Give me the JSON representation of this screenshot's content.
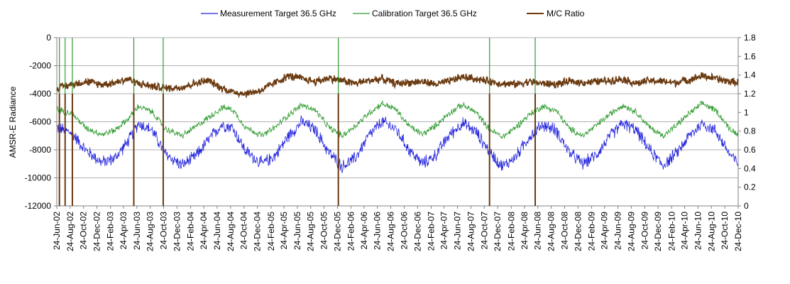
{
  "chart_data": {
    "type": "line",
    "title": "",
    "ylabel": "AMSR-E Radiance",
    "ylabel_right": "",
    "ylim": [
      -12000,
      0
    ],
    "ylim_right": [
      0,
      1.8
    ],
    "y_ticks": [
      "0",
      "-2000",
      "-4000",
      "-6000",
      "-8000",
      "-10000",
      "-12000"
    ],
    "y_ticks_right": [
      "1.8",
      "1.6",
      "1.4",
      "1.2",
      "1",
      "0.8",
      "0.6",
      "0.4",
      "0.2",
      "0"
    ],
    "grid": "horizontal",
    "legend_position": "top",
    "x_range": [
      "2002-06-24",
      "2010-12-24"
    ],
    "x_ticks": [
      "24-Jun-02",
      "24-Aug-02",
      "24-Oct-02",
      "24-Dec-02",
      "24-Feb-03",
      "24-Apr-03",
      "24-Jun-03",
      "24-Aug-03",
      "24-Oct-03",
      "24-Dec-03",
      "24-Feb-04",
      "24-Apr-04",
      "24-Jun-04",
      "24-Aug-04",
      "24-Oct-04",
      "24-Dec-04",
      "24-Feb-05",
      "24-Apr-05",
      "24-Jun-05",
      "24-Aug-05",
      "24-Oct-05",
      "24-Dec-05",
      "24-Feb-06",
      "24-Apr-06",
      "24-Jun-06",
      "24-Aug-06",
      "24-Oct-06",
      "24-Dec-06",
      "24-Feb-07",
      "24-Apr-07",
      "24-Jun-07",
      "24-Aug-07",
      "24-Oct-07",
      "24-Dec-07",
      "24-Feb-08",
      "24-Apr-08",
      "24-Jun-08",
      "24-Aug-08",
      "24-Oct-08",
      "24-Dec-08",
      "24-Feb-09",
      "24-Apr-09",
      "24-Jun-09",
      "24-Aug-09",
      "24-Oct-09",
      "24-Dec-09",
      "24-Feb-10",
      "24-Apr-10",
      "24-Jun-10",
      "24-Aug-10",
      "24-Oct-10",
      "24-Dec-10"
    ],
    "series": [
      {
        "name": "Measurement Target 36.5 GHz",
        "axis": "left",
        "color": "#2222dd",
        "x": [
          "2002-06-24",
          "2002-09-01",
          "2002-11-01",
          "2003-01-15",
          "2003-03-15",
          "2003-05-15",
          "2003-07-01",
          "2003-09-01",
          "2003-11-01",
          "2004-01-15",
          "2004-03-15",
          "2004-05-15",
          "2004-07-15",
          "2004-09-01",
          "2004-11-01",
          "2005-01-15",
          "2005-03-15",
          "2005-05-15",
          "2005-07-15",
          "2005-09-15",
          "2005-11-15",
          "2006-01-15",
          "2006-03-15",
          "2006-05-15",
          "2006-07-15",
          "2006-09-15",
          "2006-11-15",
          "2007-01-15",
          "2007-03-15",
          "2007-05-15",
          "2007-07-15",
          "2007-09-15",
          "2007-11-15",
          "2008-01-15",
          "2008-03-15",
          "2008-05-15",
          "2008-07-15",
          "2008-09-15",
          "2008-11-15",
          "2009-01-15",
          "2009-03-15",
          "2009-05-15",
          "2009-07-15",
          "2009-09-15",
          "2009-11-15",
          "2010-01-15",
          "2010-03-15",
          "2010-05-15",
          "2010-07-15",
          "2010-09-15",
          "2010-11-15",
          "2010-12-24"
        ],
        "values": [
          -6400,
          -6800,
          -8000,
          -8900,
          -8600,
          -7400,
          -6100,
          -6600,
          -8300,
          -9100,
          -8500,
          -7300,
          -6200,
          -6400,
          -8100,
          -9000,
          -8400,
          -7000,
          -6000,
          -6600,
          -8200,
          -9200,
          -8600,
          -7000,
          -6000,
          -6500,
          -8000,
          -9000,
          -8400,
          -7000,
          -6100,
          -6700,
          -8100,
          -9200,
          -8500,
          -7100,
          -6200,
          -6600,
          -8200,
          -9000,
          -8400,
          -7100,
          -6100,
          -6600,
          -8000,
          -9100,
          -8300,
          -7000,
          -6100,
          -6700,
          -8300,
          -9000
        ]
      },
      {
        "name": "Calibration Target 36.5 GHz",
        "axis": "left",
        "color": "#2e9b2e",
        "x": [
          "2002-06-24",
          "2002-09-01",
          "2002-11-01",
          "2003-01-15",
          "2003-03-15",
          "2003-05-15",
          "2003-07-01",
          "2003-09-01",
          "2003-11-01",
          "2004-01-15",
          "2004-03-15",
          "2004-05-15",
          "2004-07-15",
          "2004-09-01",
          "2004-11-01",
          "2005-01-15",
          "2005-03-15",
          "2005-05-15",
          "2005-07-15",
          "2005-09-15",
          "2005-11-15",
          "2006-01-15",
          "2006-03-15",
          "2006-05-15",
          "2006-07-15",
          "2006-09-15",
          "2006-11-15",
          "2007-01-15",
          "2007-03-15",
          "2007-05-15",
          "2007-07-15",
          "2007-09-15",
          "2007-11-15",
          "2008-01-15",
          "2008-03-15",
          "2008-05-15",
          "2008-07-15",
          "2008-09-15",
          "2008-11-15",
          "2009-01-15",
          "2009-03-15",
          "2009-05-15",
          "2009-07-15",
          "2009-09-15",
          "2009-11-15",
          "2010-01-15",
          "2010-03-15",
          "2010-05-15",
          "2010-07-15",
          "2010-09-15",
          "2010-11-15",
          "2010-12-24"
        ],
        "values": [
          -5100,
          -5400,
          -6400,
          -6900,
          -6600,
          -5800,
          -4900,
          -5300,
          -6500,
          -7000,
          -6400,
          -5700,
          -5000,
          -5100,
          -6400,
          -7000,
          -6400,
          -5500,
          -4800,
          -5200,
          -6400,
          -7000,
          -6300,
          -5400,
          -4700,
          -5100,
          -6300,
          -6900,
          -6300,
          -5400,
          -4800,
          -5300,
          -6500,
          -7100,
          -6400,
          -5500,
          -4900,
          -5200,
          -6500,
          -7000,
          -6300,
          -5500,
          -4800,
          -5300,
          -6400,
          -7000,
          -6300,
          -5400,
          -4700,
          -5200,
          -6500,
          -6900
        ]
      },
      {
        "name": "M/C Ratio",
        "axis": "right",
        "color": "#6b3a10",
        "x": [
          "2002-06-24",
          "2002-09-01",
          "2002-11-01",
          "2003-01-15",
          "2003-03-15",
          "2003-05-15",
          "2003-07-01",
          "2003-09-01",
          "2003-11-01",
          "2004-01-15",
          "2004-03-15",
          "2004-05-15",
          "2004-07-15",
          "2004-09-01",
          "2004-11-01",
          "2005-01-15",
          "2005-03-15",
          "2005-05-15",
          "2005-07-15",
          "2005-09-15",
          "2005-11-15",
          "2006-01-15",
          "2006-03-15",
          "2006-05-15",
          "2006-07-15",
          "2006-09-15",
          "2006-11-15",
          "2007-01-15",
          "2007-03-15",
          "2007-05-15",
          "2007-07-15",
          "2007-09-15",
          "2007-11-15",
          "2008-01-15",
          "2008-03-15",
          "2008-05-15",
          "2008-07-15",
          "2008-09-15",
          "2008-11-15",
          "2009-01-15",
          "2009-03-15",
          "2009-05-15",
          "2009-07-15",
          "2009-09-15",
          "2009-11-15",
          "2010-01-15",
          "2010-03-15",
          "2010-05-15",
          "2010-07-15",
          "2010-09-15",
          "2010-11-15",
          "2010-12-24"
        ],
        "values": [
          1.26,
          1.3,
          1.33,
          1.3,
          1.32,
          1.36,
          1.31,
          1.28,
          1.26,
          1.27,
          1.31,
          1.34,
          1.26,
          1.22,
          1.2,
          1.24,
          1.32,
          1.39,
          1.36,
          1.33,
          1.37,
          1.34,
          1.31,
          1.34,
          1.36,
          1.31,
          1.32,
          1.33,
          1.3,
          1.33,
          1.38,
          1.36,
          1.33,
          1.31,
          1.3,
          1.33,
          1.31,
          1.3,
          1.33,
          1.32,
          1.33,
          1.34,
          1.36,
          1.31,
          1.34,
          1.33,
          1.32,
          1.35,
          1.39,
          1.36,
          1.33,
          1.32
        ]
      }
    ],
    "spikes": [
      {
        "date": "2002-07-06",
        "series": "Calibration Target 36.5 GHz",
        "from": 0,
        "to": -12000
      },
      {
        "date": "2002-07-06",
        "series": "M/C Ratio",
        "from": 1.2,
        "to": 0
      },
      {
        "date": "2002-08-01",
        "series": "Calibration Target 36.5 GHz",
        "from": 0,
        "to": -12000
      },
      {
        "date": "2002-08-01",
        "series": "M/C Ratio",
        "from": 1.2,
        "to": 0
      },
      {
        "date": "2002-09-03",
        "series": "Calibration Target 36.5 GHz",
        "from": 0,
        "to": -12000
      },
      {
        "date": "2002-09-03",
        "series": "M/C Ratio",
        "from": 1.2,
        "to": 0
      },
      {
        "date": "2003-06-10",
        "series": "Calibration Target 36.5 GHz",
        "from": 0,
        "to": -6000
      },
      {
        "date": "2003-06-10",
        "series": "M/C Ratio",
        "from": 1.2,
        "to": 0
      },
      {
        "date": "2003-10-22",
        "series": "Calibration Target 36.5 GHz",
        "from": 0,
        "to": -12000
      },
      {
        "date": "2003-10-22",
        "series": "M/C Ratio",
        "from": 1.2,
        "to": 0
      },
      {
        "date": "2005-12-28",
        "series": "Calibration Target 36.5 GHz",
        "from": 0,
        "to": -6000
      },
      {
        "date": "2005-12-28",
        "series": "M/C Ratio",
        "from": 1.2,
        "to": 0
      },
      {
        "date": "2007-11-17",
        "series": "Calibration Target 36.5 GHz",
        "from": 0,
        "to": -12000
      },
      {
        "date": "2007-11-17",
        "series": "M/C Ratio",
        "from": 1.2,
        "to": 0
      },
      {
        "date": "2008-06-12",
        "series": "Calibration Target 36.5 GHz",
        "from": 0,
        "to": -6000
      },
      {
        "date": "2008-06-12",
        "series": "M/C Ratio",
        "from": 1.2,
        "to": 0
      }
    ]
  }
}
